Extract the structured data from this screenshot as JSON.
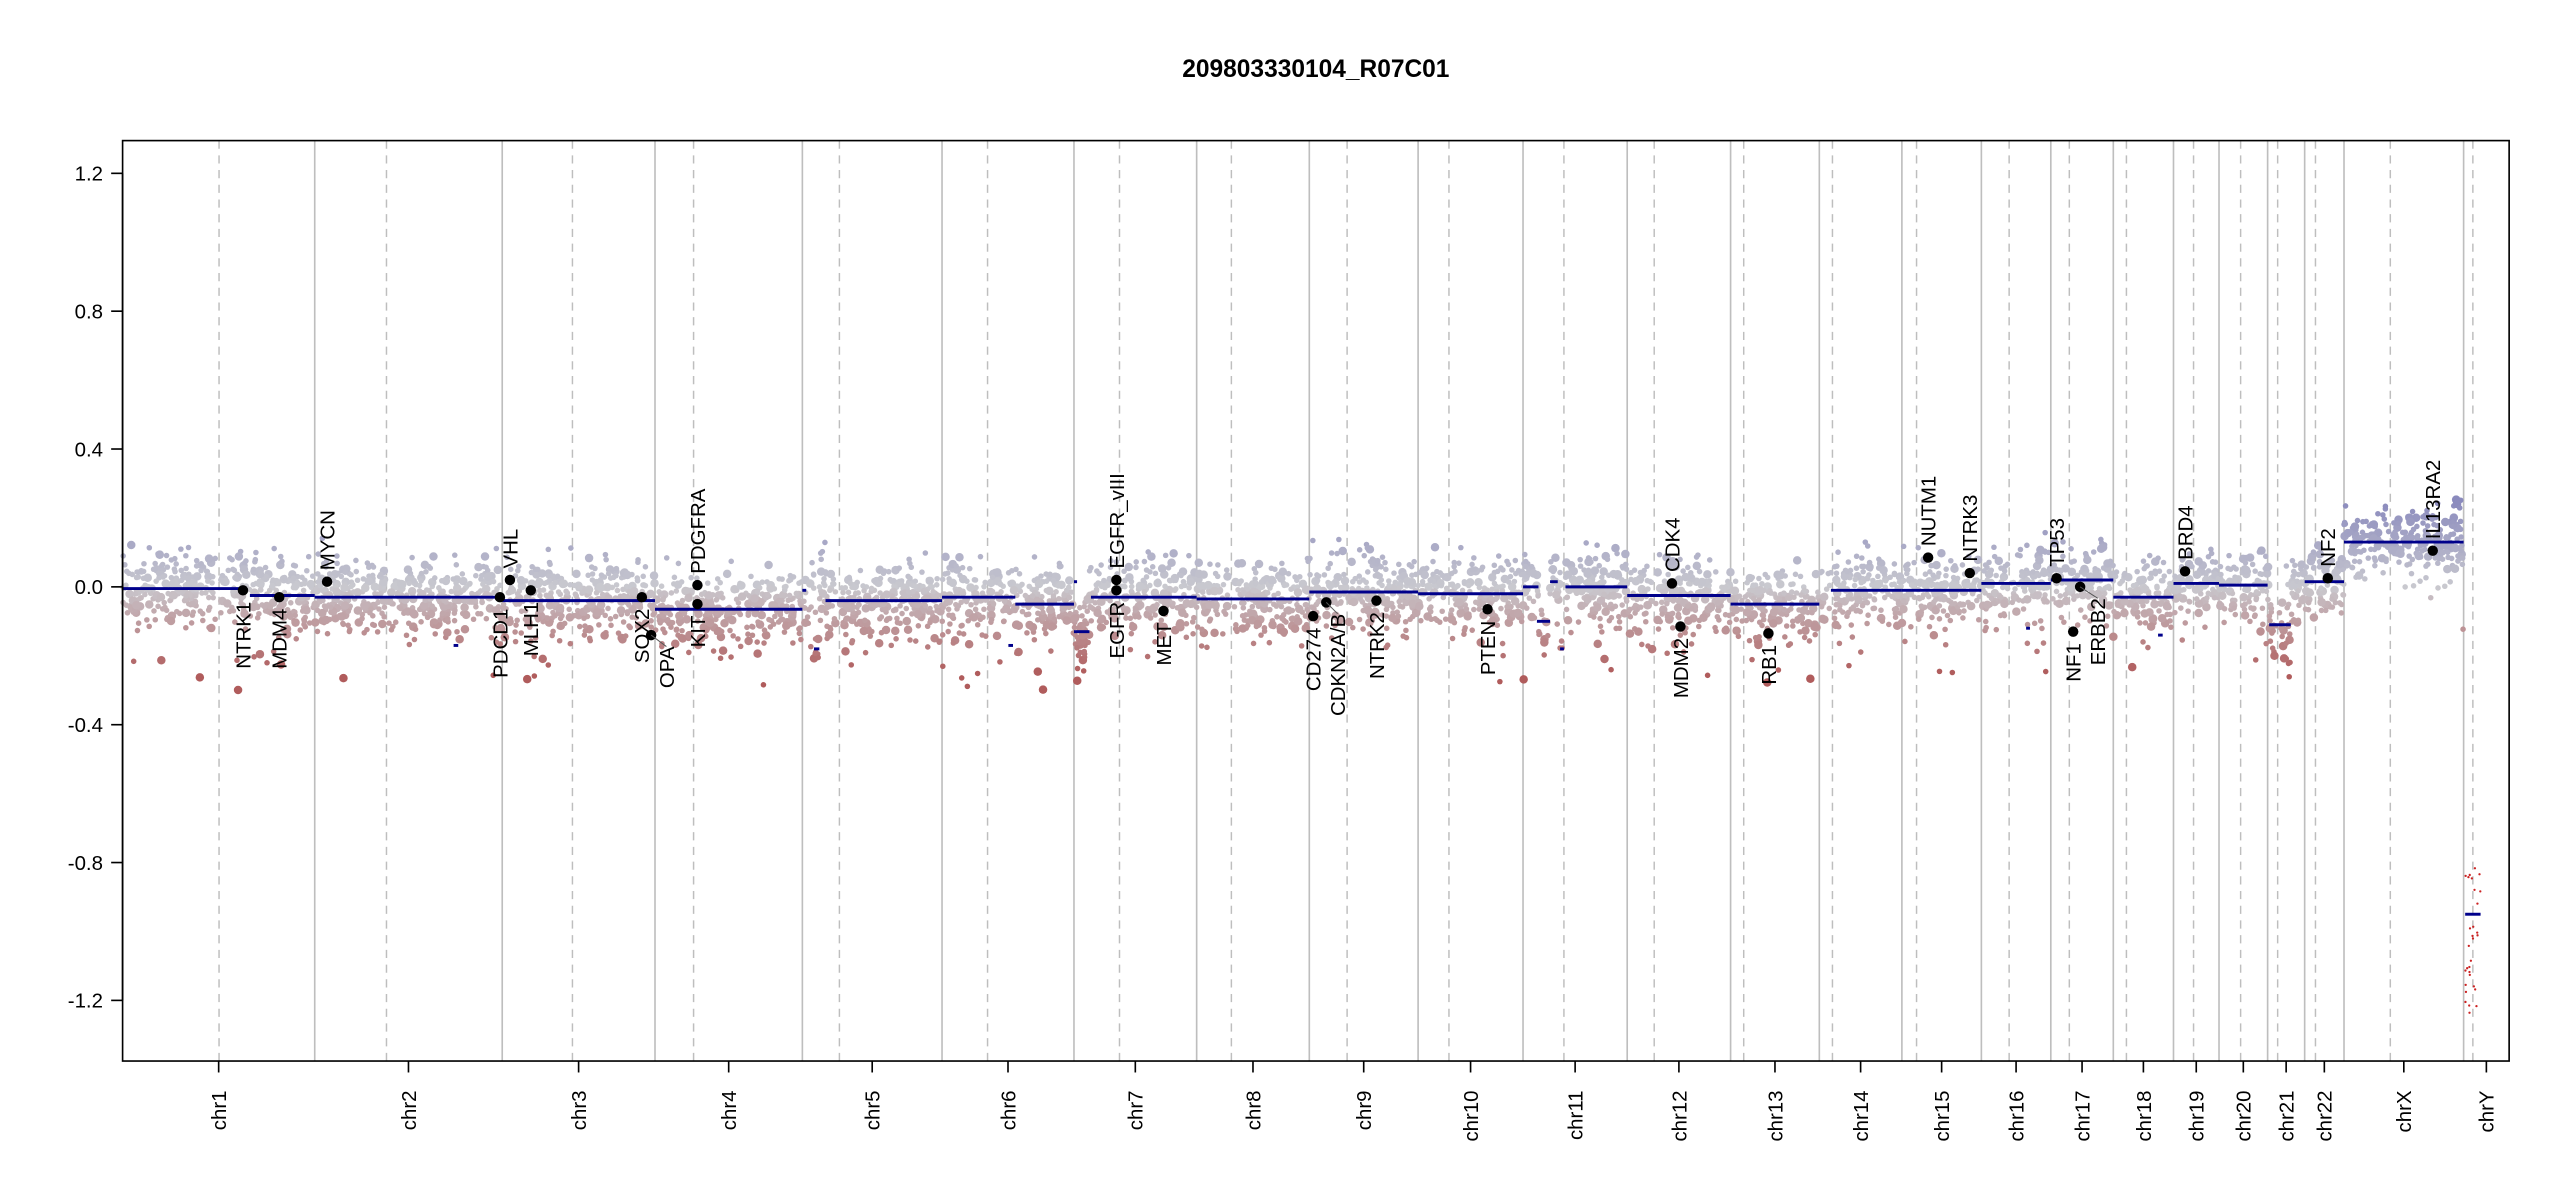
{
  "chart_data": {
    "type": "scatter",
    "title": "209803330104_R07C01",
    "xlabel": "",
    "ylabel": "",
    "ylim": [
      -1.376,
      1.295
    ],
    "yticks": [
      -1.2,
      -0.8,
      -0.4,
      0.0,
      0.4,
      0.8,
      1.2
    ],
    "ytick_labels": [
      "-1.2",
      "-0.8",
      "-0.4",
      "0.0",
      "0.4",
      "0.8",
      "1.2"
    ],
    "grid": false,
    "colors": {
      "gain": "#8a8abd",
      "neutral": "#c9c9cf",
      "loss": "#b05c5c",
      "segment": "#00008b",
      "gene_dot": "#000000",
      "chr_line": "#bebebe"
    },
    "chromosomes": [
      {
        "name": "chr1",
        "length_mb": 249,
        "centromere_mb": 125
      },
      {
        "name": "chr2",
        "length_mb": 243,
        "centromere_mb": 93
      },
      {
        "name": "chr3",
        "length_mb": 198,
        "centromere_mb": 91
      },
      {
        "name": "chr4",
        "length_mb": 191,
        "centromere_mb": 50
      },
      {
        "name": "chr5",
        "length_mb": 181,
        "centromere_mb": 48
      },
      {
        "name": "chr6",
        "length_mb": 171,
        "centromere_mb": 59
      },
      {
        "name": "chr7",
        "length_mb": 159,
        "centromere_mb": 59
      },
      {
        "name": "chr8",
        "length_mb": 146,
        "centromere_mb": 45
      },
      {
        "name": "chr9",
        "length_mb": 141,
        "centromere_mb": 49
      },
      {
        "name": "chr10",
        "length_mb": 136,
        "centromere_mb": 40
      },
      {
        "name": "chr11",
        "length_mb": 135,
        "centromere_mb": 53
      },
      {
        "name": "chr12",
        "length_mb": 134,
        "centromere_mb": 35
      },
      {
        "name": "chr13",
        "length_mb": 115,
        "centromere_mb": 17
      },
      {
        "name": "chr14",
        "length_mb": 107,
        "centromere_mb": 17
      },
      {
        "name": "chr15",
        "length_mb": 103,
        "centromere_mb": 19
      },
      {
        "name": "chr16",
        "length_mb": 90,
        "centromere_mb": 36
      },
      {
        "name": "chr17",
        "length_mb": 81,
        "centromere_mb": 24
      },
      {
        "name": "chr18",
        "length_mb": 78,
        "centromere_mb": 17
      },
      {
        "name": "chr19",
        "length_mb": 59,
        "centromere_mb": 26
      },
      {
        "name": "chr20",
        "length_mb": 63,
        "centromere_mb": 28
      },
      {
        "name": "chr21",
        "length_mb": 48,
        "centromere_mb": 13
      },
      {
        "name": "chr22",
        "length_mb": 51,
        "centromere_mb": 14
      },
      {
        "name": "chrX",
        "length_mb": 155,
        "centromere_mb": 60
      },
      {
        "name": "chrY",
        "length_mb": 59,
        "centromere_mb": 12
      }
    ],
    "segments": [
      {
        "chr": "chr1",
        "start": 0,
        "end": 160,
        "value": -0.005
      },
      {
        "chr": "chr1",
        "start": 165,
        "end": 249,
        "value": -0.025
      },
      {
        "chr": "chr2",
        "start": 0,
        "end": 243,
        "value": -0.03
      },
      {
        "chr": "chr2",
        "start": 180,
        "end": 186,
        "value": -0.17
      },
      {
        "chr": "chr3",
        "start": 0,
        "end": 198,
        "value": -0.04
      },
      {
        "chr": "chr4",
        "start": 0,
        "end": 191,
        "value": -0.065
      },
      {
        "chr": "chr5",
        "start": 0,
        "end": 5,
        "value": -0.01
      },
      {
        "chr": "chr5",
        "start": 15,
        "end": 22,
        "value": -0.18
      },
      {
        "chr": "chr5",
        "start": 30,
        "end": 181,
        "value": -0.04
      },
      {
        "chr": "chr6",
        "start": 0,
        "end": 95,
        "value": -0.03
      },
      {
        "chr": "chr6",
        "start": 95,
        "end": 171,
        "value": -0.05
      },
      {
        "chr": "chr6",
        "start": 86,
        "end": 92,
        "value": -0.17
      },
      {
        "chr": "chr7",
        "start": 0,
        "end": 20,
        "value": -0.13
      },
      {
        "chr": "chr7",
        "start": 0,
        "end": 4,
        "value": 0.015
      },
      {
        "chr": "chr7",
        "start": 22,
        "end": 159,
        "value": -0.03
      },
      {
        "chr": "chr8",
        "start": 0,
        "end": 146,
        "value": -0.035
      },
      {
        "chr": "chr9",
        "start": 0,
        "end": 141,
        "value": -0.015
      },
      {
        "chr": "chr10",
        "start": 0,
        "end": 136,
        "value": -0.02
      },
      {
        "chr": "chr11",
        "start": 0,
        "end": 20,
        "value": 0.0
      },
      {
        "chr": "chr11",
        "start": 18,
        "end": 35,
        "value": -0.1
      },
      {
        "chr": "chr11",
        "start": 35,
        "end": 45,
        "value": 0.015
      },
      {
        "chr": "chr11",
        "start": 48,
        "end": 53,
        "value": -0.18
      },
      {
        "chr": "chr11",
        "start": 55,
        "end": 135,
        "value": 0.0
      },
      {
        "chr": "chr12",
        "start": 0,
        "end": 134,
        "value": -0.025
      },
      {
        "chr": "chr13",
        "start": 0,
        "end": 115,
        "value": -0.05
      },
      {
        "chr": "chr14",
        "start": 15,
        "end": 107,
        "value": -0.01
      },
      {
        "chr": "chr15",
        "start": 0,
        "end": 103,
        "value": -0.01
      },
      {
        "chr": "chr16",
        "start": 0,
        "end": 90,
        "value": 0.01
      },
      {
        "chr": "chr16",
        "start": 58,
        "end": 63,
        "value": -0.12
      },
      {
        "chr": "chr17",
        "start": 0,
        "end": 81,
        "value": 0.02
      },
      {
        "chr": "chr18",
        "start": 0,
        "end": 78,
        "value": -0.03
      },
      {
        "chr": "chr18",
        "start": 58,
        "end": 64,
        "value": -0.14
      },
      {
        "chr": "chr19",
        "start": 0,
        "end": 59,
        "value": 0.01
      },
      {
        "chr": "chr20",
        "start": 0,
        "end": 63,
        "value": 0.005
      },
      {
        "chr": "chr21",
        "start": 2,
        "end": 30,
        "value": -0.11
      },
      {
        "chr": "chr22",
        "start": 0,
        "end": 51,
        "value": 0.015
      },
      {
        "chr": "chrX",
        "start": 0,
        "end": 155,
        "value": 0.13
      },
      {
        "chr": "chrY",
        "start": 2,
        "end": 22,
        "value": -0.95
      }
    ],
    "genes": [
      {
        "name": "NTRK1",
        "chr": "chr1",
        "pos_mb": 156,
        "value": -0.01,
        "label_side": "down"
      },
      {
        "name": "MDM4",
        "chr": "chr1",
        "pos_mb": 203,
        "value": -0.03,
        "label_side": "down"
      },
      {
        "name": "MYCN",
        "chr": "chr2",
        "pos_mb": 16,
        "value": 0.015,
        "label_side": "up"
      },
      {
        "name": "PDCD1",
        "chr": "chr2",
        "pos_mb": 240,
        "value": -0.03,
        "label_side": "down"
      },
      {
        "name": "VHL",
        "chr": "chr3",
        "pos_mb": 10,
        "value": 0.02,
        "label_side": "up"
      },
      {
        "name": "MLH1",
        "chr": "chr3",
        "pos_mb": 37,
        "value": -0.01,
        "label_side": "down"
      },
      {
        "name": "SOX2",
        "chr": "chr3",
        "pos_mb": 181,
        "value": -0.03,
        "label_side": "down"
      },
      {
        "name": "OPA",
        "chr": "chr3",
        "pos_mb": 193,
        "value": -0.14,
        "label_side": "down"
      },
      {
        "name": "KIT",
        "chr": "chr4",
        "pos_mb": 55,
        "value": -0.05,
        "label_side": "down"
      },
      {
        "name": "PDGFRA",
        "chr": "chr4",
        "pos_mb": 55,
        "value": 0.005,
        "label_side": "up"
      },
      {
        "name": "EGFR",
        "chr": "chr7",
        "pos_mb": 55,
        "value": -0.01,
        "label_side": "down"
      },
      {
        "name": "EGFR_vIII",
        "chr": "chr7",
        "pos_mb": 55,
        "value": 0.02,
        "label_side": "up"
      },
      {
        "name": "MET",
        "chr": "chr7",
        "pos_mb": 116,
        "value": -0.07,
        "label_side": "down"
      },
      {
        "name": "CD274",
        "chr": "chr9",
        "pos_mb": 5,
        "value": -0.085,
        "label_side": "down"
      },
      {
        "name": "CDKN2A/B",
        "chr": "chr9",
        "pos_mb": 22,
        "value": -0.045,
        "label_side": "down"
      },
      {
        "name": "NTRK2",
        "chr": "chr9",
        "pos_mb": 87,
        "value": -0.04,
        "label_side": "down"
      },
      {
        "name": "PTEN",
        "chr": "chr10",
        "pos_mb": 90,
        "value": -0.065,
        "label_side": "down"
      },
      {
        "name": "CDK4",
        "chr": "chr12",
        "pos_mb": 58,
        "value": 0.01,
        "label_side": "up"
      },
      {
        "name": "MDM2",
        "chr": "chr12",
        "pos_mb": 69,
        "value": -0.115,
        "label_side": "down"
      },
      {
        "name": "RB1",
        "chr": "chr13",
        "pos_mb": 49,
        "value": -0.135,
        "label_side": "down"
      },
      {
        "name": "NUTM1",
        "chr": "chr15",
        "pos_mb": 34,
        "value": 0.085,
        "label_side": "up"
      },
      {
        "name": "NTRK3",
        "chr": "chr15",
        "pos_mb": 88,
        "value": 0.04,
        "label_side": "up"
      },
      {
        "name": "TP53",
        "chr": "chr17",
        "pos_mb": 7.5,
        "value": 0.025,
        "label_side": "up"
      },
      {
        "name": "NF1",
        "chr": "chr17",
        "pos_mb": 29,
        "value": -0.13,
        "label_side": "down"
      },
      {
        "name": "ERBB2",
        "chr": "chr17",
        "pos_mb": 38,
        "value": 0.0,
        "label_side": "down"
      },
      {
        "name": "BRD4",
        "chr": "chr19",
        "pos_mb": 15,
        "value": 0.045,
        "label_side": "up"
      },
      {
        "name": "NF2",
        "chr": "chr22",
        "pos_mb": 30,
        "value": 0.025,
        "label_side": "up"
      },
      {
        "name": "IL13RA2",
        "chr": "chrX",
        "pos_mb": 115,
        "value": 0.105,
        "label_side": "up"
      }
    ]
  }
}
